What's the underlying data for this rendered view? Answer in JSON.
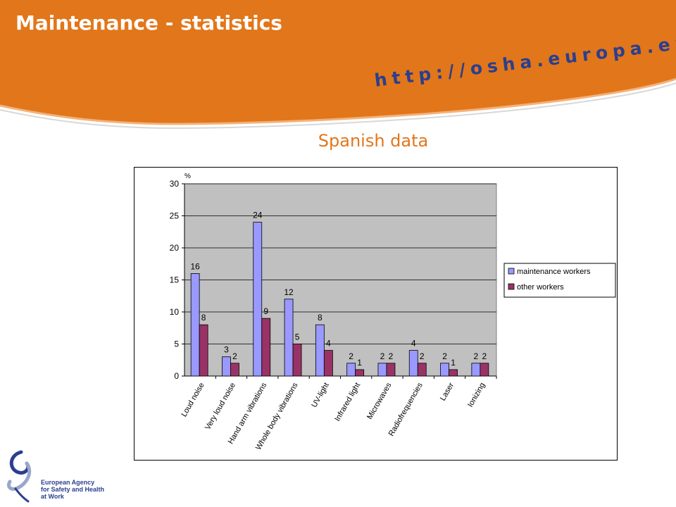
{
  "slide": {
    "title": "Maintenance - statistics",
    "url": "http://osha.europa.eu",
    "subtitle": "Spanish data",
    "agency_lines": [
      "European Agency",
      "for Safety and Health",
      "at Work"
    ]
  },
  "colors": {
    "orange": "#e2761a",
    "navy": "#2a3f8f",
    "series1": "#9999ff",
    "series2": "#993366",
    "plot_bg": "#c0c0c0"
  },
  "chart_data": {
    "type": "bar",
    "title": "",
    "ylabel": "%",
    "xlabel": "",
    "ylim": [
      0,
      30
    ],
    "yticks": [
      0,
      5,
      10,
      15,
      20,
      25,
      30
    ],
    "grid": true,
    "legend_position": "right",
    "categories": [
      "Loud noise",
      "Very loud noise",
      "Hand arm vibrations",
      "Whole body vibrations",
      "UV-light",
      "Infrared light",
      "Microwaves",
      "Radiofrequencies",
      "Laser",
      "Ionizing"
    ],
    "series": [
      {
        "name": "maintenance workers",
        "values": [
          16,
          3,
          24,
          12,
          8,
          2,
          2,
          4,
          2,
          2
        ]
      },
      {
        "name": "other workers",
        "values": [
          8,
          2,
          9,
          5,
          4,
          1,
          2,
          2,
          1,
          2
        ]
      }
    ]
  }
}
